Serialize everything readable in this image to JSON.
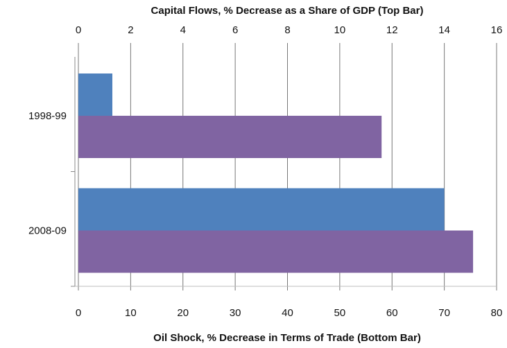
{
  "chart_data": {
    "type": "bar",
    "orientation": "horizontal",
    "x2label": "Capital Flows, % Decrease as a Share of GDP (Top Bar)",
    "xlabel": "Oil Shock, % Decrease in Terms of Trade (Bottom Bar)",
    "categories": [
      "1998-99",
      "2008-09"
    ],
    "series": [
      {
        "color": "#4f81bd",
        "axis": "x2",
        "values": [
          1.3,
          14
        ]
      },
      {
        "color": "#8064a2",
        "axis": "x",
        "values": [
          58,
          75.5
        ]
      }
    ],
    "xlim": [
      0,
      80
    ],
    "xticks": [
      0,
      10,
      20,
      30,
      40,
      50,
      60,
      70,
      80
    ],
    "x2lim": [
      0,
      16
    ],
    "x2ticks": [
      0,
      2,
      4,
      6,
      8,
      10,
      12,
      14,
      16
    ],
    "grid": true
  }
}
